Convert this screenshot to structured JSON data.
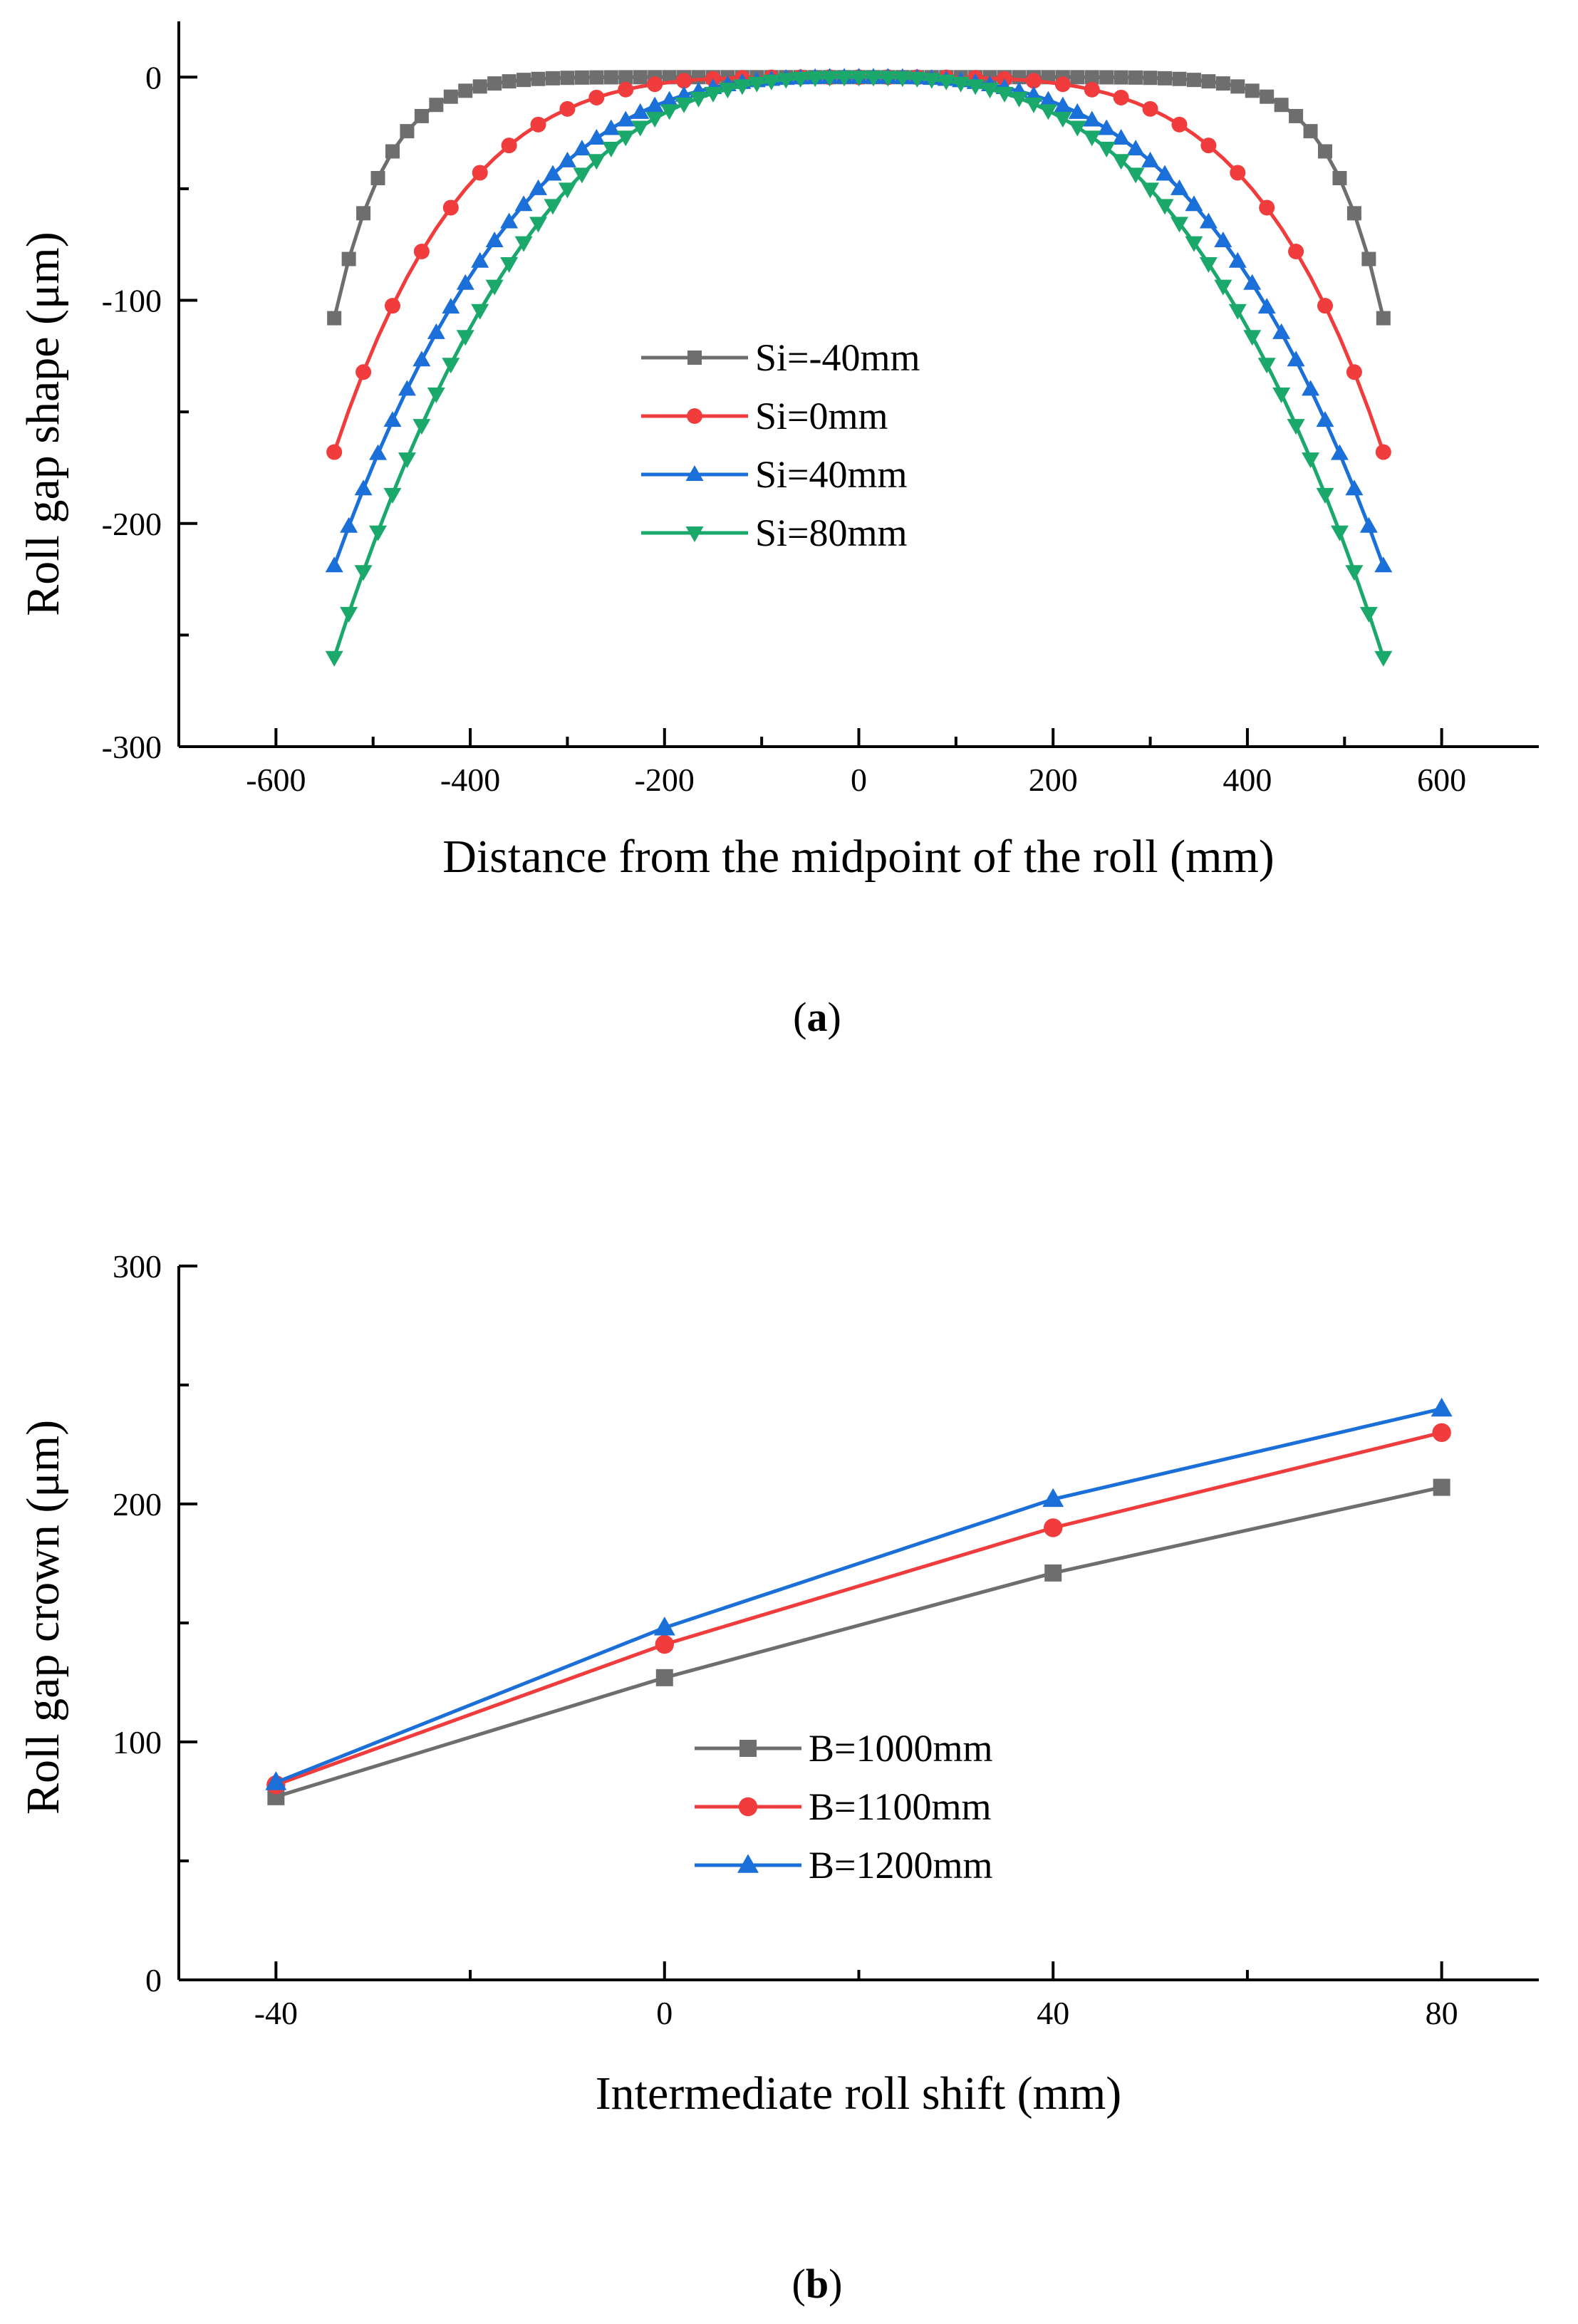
{
  "figure": {
    "caption_a": {
      "open": "(",
      "letter": "a",
      "close": ")"
    },
    "caption_b": {
      "open": "(",
      "letter": "b",
      "close": ")"
    }
  },
  "chart_data": [
    {
      "id": "a",
      "type": "line",
      "title": "",
      "xlabel": "Distance from the midpoint of the roll (mm)",
      "ylabel": "Roll gap shape (μm)",
      "xlim": [
        -700,
        700
      ],
      "ylim": [
        -300,
        25
      ],
      "xticks": [
        -600,
        -400,
        -200,
        0,
        200,
        400,
        600
      ],
      "xtick_labels": [
        "-600",
        "-400",
        "-200",
        "0",
        "200",
        "400",
        "600"
      ],
      "yticks": [
        -300,
        -200,
        -100,
        0
      ],
      "ytick_labels": [
        "-300",
        "-200",
        "-100",
        "0"
      ],
      "x_range": [
        -540,
        540
      ],
      "points_per_series": 73,
      "legend_position": "center",
      "series": [
        {
          "name": "Si=-40mm",
          "color": "#6e6e6e",
          "marker": "square",
          "end_value": -108,
          "shape_exponent": 10,
          "marker_every": 1
        },
        {
          "name": "Si=0mm",
          "color": "#f03c3c",
          "marker": "circle",
          "end_value": -168,
          "shape_exponent": 4.2,
          "marker_every": 2
        },
        {
          "name": "Si=40mm",
          "color": "#1a6fd8",
          "marker": "triangle-up",
          "end_value": -219,
          "shape_exponent": 3.0,
          "marker_every": 1
        },
        {
          "name": "Si=80mm",
          "color": "#1aa86b",
          "marker": "triangle-down",
          "end_value": -260,
          "shape_exponent": 2.8,
          "marker_every": 1
        }
      ]
    },
    {
      "id": "b",
      "type": "line",
      "title": "",
      "xlabel": "Intermediate roll shift (mm)",
      "ylabel": "Roll gap crown (μm)",
      "xlim": [
        -50,
        90
      ],
      "ylim": [
        0,
        300
      ],
      "xticks": [
        -40,
        0,
        40,
        80
      ],
      "xtick_labels": [
        "-40",
        "0",
        "40",
        "80"
      ],
      "yticks": [
        0,
        100,
        200,
        300
      ],
      "ytick_labels": [
        "0",
        "100",
        "200",
        "300"
      ],
      "x": [
        -40,
        0,
        40,
        80
      ],
      "legend_position": "center-bottom",
      "series": [
        {
          "name": "B=1000mm",
          "color": "#6e6e6e",
          "marker": "square",
          "values": [
            77,
            127,
            171,
            207
          ]
        },
        {
          "name": "B=1100mm",
          "color": "#f03c3c",
          "marker": "circle",
          "values": [
            82,
            141,
            190,
            230
          ]
        },
        {
          "name": "B=1200mm",
          "color": "#1a6fd8",
          "marker": "triangle-up",
          "values": [
            83,
            148,
            202,
            240
          ]
        }
      ]
    }
  ]
}
